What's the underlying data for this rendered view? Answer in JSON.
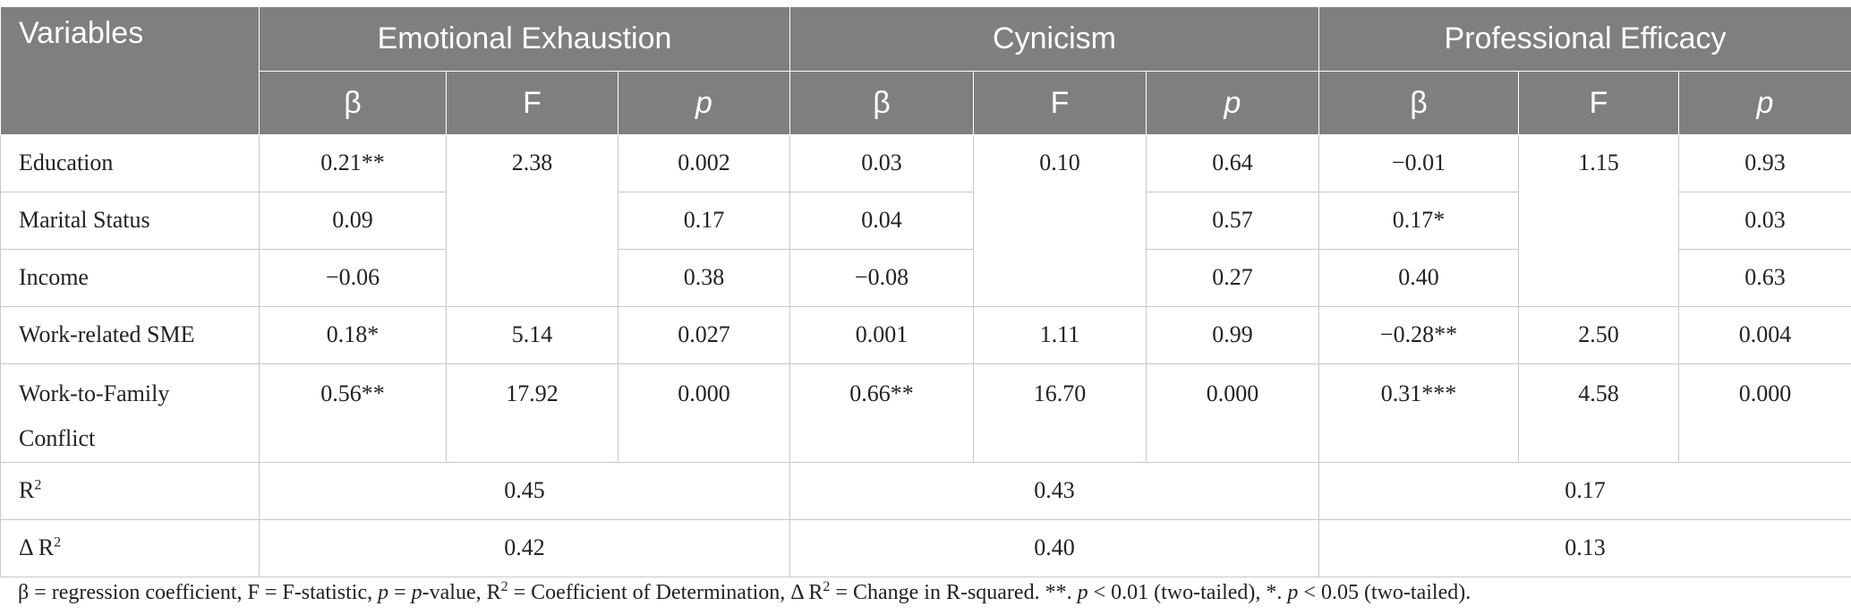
{
  "header": {
    "variables": "Variables",
    "groups": [
      "Emotional Exhaustion",
      "Cynicism",
      "Professional Efficacy"
    ],
    "sub": [
      "β",
      "F",
      "p"
    ]
  },
  "rows": {
    "education": {
      "label": "Education",
      "ee_b": "0.21**",
      "ee_f": "2.38",
      "ee_p": "0.002",
      "cy_b": "0.03",
      "cy_f": "0.10",
      "cy_p": "0.64",
      "pe_b": "−0.01",
      "pe_f": "1.15",
      "pe_p": "0.93"
    },
    "marital": {
      "label": "Marital Status",
      "ee_b": "0.09",
      "ee_p": "0.17",
      "cy_b": "0.04",
      "cy_p": "0.57",
      "pe_b": "0.17*",
      "pe_p": "0.03"
    },
    "income": {
      "label": "Income",
      "ee_b": "−0.06",
      "ee_p": "0.38",
      "cy_b": "−0.08",
      "cy_p": "0.27",
      "pe_b": "0.40",
      "pe_p": "0.63"
    },
    "sme": {
      "label": "Work-related SME",
      "ee_b": "0.18*",
      "ee_f": "5.14",
      "ee_p": "0.027",
      "cy_b": "0.001",
      "cy_f": "1.11",
      "cy_p": "0.99",
      "pe_b": "−0.28**",
      "pe_f": "2.50",
      "pe_p": "0.004"
    },
    "wfc": {
      "label_line1": "Work-to-Family",
      "label_line2": "Conflict",
      "ee_b": "0.56**",
      "ee_f": "17.92",
      "ee_p": "0.000",
      "cy_b": "0.66**",
      "cy_f": "16.70",
      "cy_p": "0.000",
      "pe_b": "0.31***",
      "pe_f": "4.58",
      "pe_p": "0.000"
    },
    "r2": {
      "label": "R",
      "label_sup": "2",
      "ee": "0.45",
      "cy": "0.43",
      "pe": "0.17"
    },
    "dr2": {
      "label": "Δ R",
      "label_sup": "2",
      "ee": "0.42",
      "cy": "0.40",
      "pe": "0.13"
    }
  },
  "note": {
    "part1": "β = regression coefficient, F = F-statistic, ",
    "p1": "p",
    "part2": " = ",
    "p2": "p",
    "part3": "-value, R",
    "sup1": "2",
    "part4": " = Coefficient of Determination, Δ R",
    "sup2": "2",
    "part5": " = Change in R-squared. **. ",
    "p3": "p",
    "part6": " < 0.01 (two-tailed), *. ",
    "p4": "p",
    "part7": " < 0.05 (two-tailed)."
  }
}
